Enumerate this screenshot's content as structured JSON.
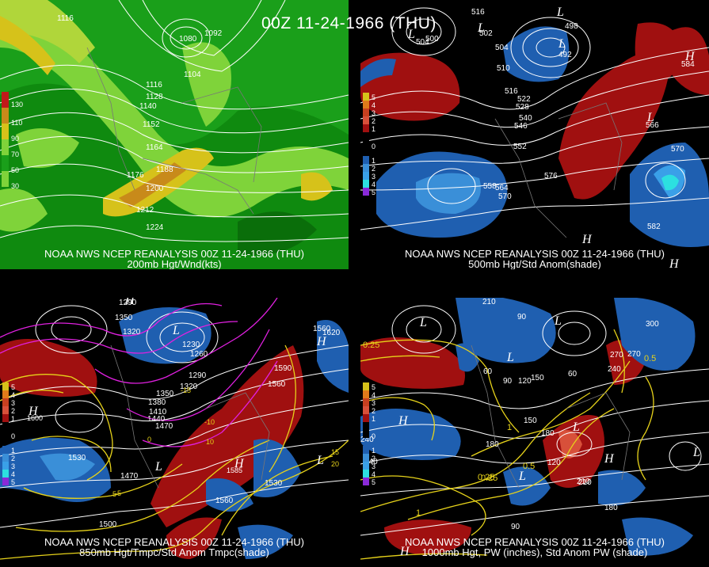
{
  "main_title": "00Z 11-24-1966 (THU)",
  "panels": [
    {
      "caption_line1": "NOAA NWS NCEP REANALYSIS 00Z 11-24-1966 (THU)",
      "caption_line2": "200mb Hgt/Wnd(kts)",
      "contour_labels": [
        "1116",
        "1080",
        "1092",
        "1104",
        "1116",
        "1128",
        "1140",
        "1152",
        "1164",
        "1176",
        "1188",
        "1200",
        "1212",
        "1224"
      ],
      "legend": [
        "130",
        "110",
        "90",
        "70",
        "50",
        "30"
      ],
      "colors": {
        "bg": "#1a9f1a",
        "light": "#7fd33a",
        "yellow": "#d6c21a",
        "orange": "#c88a1a",
        "dark": "#0a6e0a"
      }
    },
    {
      "caption_line1": "NOAA NWS NCEP REANALYSIS 00Z 11-24-1966 (THU)",
      "caption_line2": "500mb Hgt/Std Anom(shade)",
      "contour_labels": [
        "516",
        "504",
        "500",
        "502",
        "498",
        "492",
        "504",
        "510",
        "516",
        "522",
        "528",
        "540",
        "546",
        "552",
        "558",
        "564",
        "570",
        "576",
        "566",
        "570",
        "582",
        "584"
      ],
      "legend": [
        "5",
        "4",
        "3",
        "2",
        "1",
        "0",
        "1",
        "2",
        "3",
        "4",
        "5"
      ],
      "colors": {
        "red": "#a01010",
        "blue": "#1f5fb0",
        "lightblue": "#3aa0e8",
        "cyan": "#2ce0e0"
      }
    },
    {
      "caption_line1": "NOAA NWS NCEP REANALYSIS 00Z 11-24-1966 (THU)",
      "caption_line2": "850mb Hgt/Tmpc/Std Anom Tmpc(shade)",
      "contour_labels": [
        "1290",
        "1350",
        "1320",
        "1230",
        "1260",
        "1290",
        "1320",
        "1350",
        "1380",
        "1410",
        "1440",
        "1470",
        "1530",
        "1470",
        "1560",
        "1530",
        "1560",
        "1590",
        "1560",
        "1620",
        "1500",
        "1600",
        "1585"
      ],
      "temp_labels": [
        "-15",
        "-10",
        "-5",
        "0",
        "5",
        "10",
        "15",
        "20"
      ],
      "legend": [
        "5",
        "4",
        "3",
        "2",
        "1",
        "0",
        "1",
        "2",
        "3",
        "4",
        "5"
      ]
    },
    {
      "caption_line1": "NOAA NWS NCEP REANALYSIS 00Z 11-24-1966 (THU)",
      "caption_line2": "1000mb Hgt, PW (inches), Std Anom PW (shade)",
      "contour_labels": [
        "210",
        "90",
        "60",
        "120",
        "150",
        "180",
        "210",
        "240",
        "270",
        "300",
        "240",
        "180",
        "150",
        "120",
        "90",
        "60",
        "270",
        "240",
        "210",
        "180",
        "90"
      ],
      "pw_labels": [
        "0.25",
        "0.5",
        "1",
        "0.25",
        "0.5",
        "0.25",
        "1"
      ],
      "legend": [
        "5",
        "4",
        "3",
        "2",
        "1",
        "0",
        "1",
        "2",
        "3",
        "4",
        "5"
      ]
    }
  ]
}
